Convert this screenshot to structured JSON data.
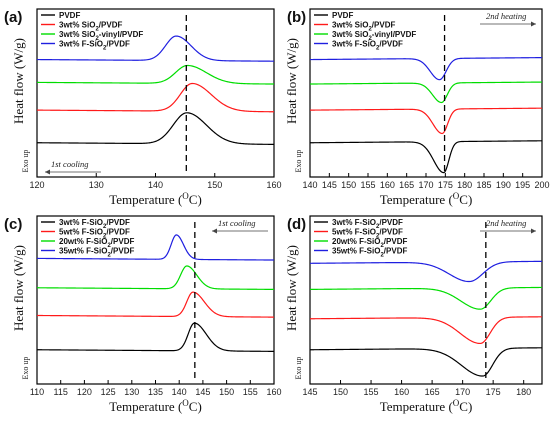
{
  "figure_colors": {
    "black": "#000000",
    "red": "#ff1a1a",
    "green": "#00dd00",
    "blue": "#1f1fe0"
  },
  "chart_data": [
    {
      "panel": "(a)",
      "type": "line",
      "xlabel": "Temperature (",
      "xlabel_unit_sup": "O",
      "xlabel_tail": "C)",
      "ylabel": "Heat flow (W/g)",
      "xlim": [
        120,
        160
      ],
      "xticks": [
        120,
        130,
        140,
        150,
        160
      ],
      "exo_label": "Exo up",
      "annotation": "1st cooling",
      "annotation_arrow": "left",
      "dashed_line_x": 145.2,
      "legend": [
        "PVDF",
        "3wt% SiO2/PVDF",
        "3wt% SiO2-vinyl/PVDF",
        "3wt% F-SiO2/PVDF"
      ],
      "series": [
        {
          "name": "PVDF",
          "color": "#000000",
          "baseline": 0.0,
          "shape": "peak",
          "center": 145.3,
          "height": 0.95,
          "wl": 2.3,
          "wr": 3.3
        },
        {
          "name": "3wt% SiO2/PVDF",
          "color": "#ff1a1a",
          "baseline": 1.0,
          "shape": "peak",
          "center": 146.2,
          "height": 0.85,
          "wl": 2.0,
          "wr": 3.2
        },
        {
          "name": "3wt% SiO2-vinyl/PVDF",
          "color": "#00dd00",
          "baseline": 1.85,
          "shape": "peak",
          "center": 145.4,
          "height": 0.55,
          "wl": 2.0,
          "wr": 3.2
        },
        {
          "name": "3wt% F-SiO2/PVDF",
          "color": "#1f1fe0",
          "baseline": 2.55,
          "shape": "peak",
          "center": 143.5,
          "height": 0.75,
          "wl": 1.8,
          "wr": 2.5
        }
      ]
    },
    {
      "panel": "(b)",
      "type": "line",
      "xlabel": "Temperature (",
      "xlabel_unit_sup": "O",
      "xlabel_tail": "C)",
      "ylabel": "Heat flow (W/g)",
      "xlim": [
        140,
        200
      ],
      "xticks": [
        140,
        145,
        150,
        155,
        160,
        165,
        170,
        175,
        180,
        185,
        190,
        195,
        200
      ],
      "exo_label": "Exo up",
      "annotation": "2nd heating",
      "annotation_arrow": "right",
      "dashed_line_x": 174.8,
      "legend": [
        "PVDF",
        "3wt% SiO2/PVDF",
        "3wt% SiO2-vinyl/PVDF",
        "3wt% F-SiO2/PVDF"
      ],
      "series": [
        {
          "name": "PVDF",
          "color": "#000000",
          "baseline": 0.0,
          "shape": "dip",
          "center": 174.6,
          "height": 0.95,
          "wl": 2.6,
          "wr": 1.3
        },
        {
          "name": "3wt% SiO2/PVDF",
          "color": "#ff1a1a",
          "baseline": 1.0,
          "shape": "dip",
          "center": 174.2,
          "height": 0.75,
          "wl": 2.4,
          "wr": 1.4
        },
        {
          "name": "3wt% SiO2-vinyl/PVDF",
          "color": "#00dd00",
          "baseline": 1.8,
          "shape": "dip",
          "center": 174.0,
          "height": 0.6,
          "wl": 2.3,
          "wr": 1.5
        },
        {
          "name": "3wt% F-SiO2/PVDF",
          "color": "#1f1fe0",
          "baseline": 2.55,
          "shape": "dip",
          "center": 173.5,
          "height": 0.65,
          "wl": 2.4,
          "wr": 1.7
        }
      ]
    },
    {
      "panel": "(c)",
      "type": "line",
      "xlabel": "Temperature (",
      "xlabel_unit_sup": "O",
      "xlabel_tail": "C)",
      "ylabel": "Heat flow (W/g)",
      "xlim": [
        110,
        160
      ],
      "xticks": [
        110,
        115,
        120,
        125,
        130,
        135,
        140,
        145,
        150,
        155,
        160
      ],
      "exo_label": "Exo up",
      "annotation": "1st cooling",
      "annotation_arrow": "left",
      "dashed_line_x": 143.3,
      "legend": [
        "3wt% F-SiO2/PVDF",
        "5wt% F-SiO2/PVDF",
        "20wt% F-SiO2/PVDF",
        "35wt% F-SiO2/PVDF"
      ],
      "series": [
        {
          "name": "3wt% F-SiO2/PVDF",
          "color": "#000000",
          "baseline": 0.0,
          "shape": "peak",
          "center": 143.2,
          "height": 0.85,
          "wl": 1.3,
          "wr": 2.5
        },
        {
          "name": "5wt% F-SiO2/PVDF",
          "color": "#ff1a1a",
          "baseline": 1.05,
          "shape": "peak",
          "center": 142.9,
          "height": 0.75,
          "wl": 1.3,
          "wr": 2.4
        },
        {
          "name": "20wt% F-SiO2/PVDF",
          "color": "#00dd00",
          "baseline": 1.9,
          "shape": "peak",
          "center": 141.6,
          "height": 0.7,
          "wl": 1.3,
          "wr": 2.1
        },
        {
          "name": "35wt% F-SiO2/PVDF",
          "color": "#1f1fe0",
          "baseline": 2.8,
          "shape": "peak",
          "center": 139.4,
          "height": 0.75,
          "wl": 1.1,
          "wr": 1.5
        }
      ]
    },
    {
      "panel": "(d)",
      "type": "line",
      "xlabel": "Temperature (",
      "xlabel_unit_sup": "O",
      "xlabel_tail": "C)",
      "ylabel": "Heat flow (W/g)",
      "xlim": [
        145,
        183
      ],
      "xticks": [
        145,
        150,
        155,
        160,
        165,
        170,
        175,
        180
      ],
      "exo_label": "Exo up",
      "annotation": "2nd heating",
      "annotation_arrow": "right",
      "dashed_line_x": 173.8,
      "legend": [
        "3wt% F-SiO2/PVDF",
        "5wt% F-SiO2/PVDF",
        "20wt% F-SiO2/PVDF",
        "35wt% F-SiO2/PVDF"
      ],
      "series": [
        {
          "name": "3wt% F-SiO2/PVDF",
          "color": "#000000",
          "baseline": 0.0,
          "shape": "dip",
          "center": 173.3,
          "height": 0.85,
          "wl": 3.5,
          "wr": 1.6
        },
        {
          "name": "5wt% F-SiO2/PVDF",
          "color": "#ff1a1a",
          "baseline": 0.95,
          "shape": "dip",
          "center": 172.9,
          "height": 0.8,
          "wl": 3.3,
          "wr": 1.6
        },
        {
          "name": "20wt% F-SiO2/PVDF",
          "color": "#00dd00",
          "baseline": 1.85,
          "shape": "dip",
          "center": 172.9,
          "height": 0.65,
          "wl": 3.2,
          "wr": 1.7
        },
        {
          "name": "35wt% F-SiO2/PVDF",
          "color": "#1f1fe0",
          "baseline": 2.65,
          "shape": "dip",
          "center": 171.1,
          "height": 0.6,
          "wl": 3.3,
          "wr": 2.2
        }
      ]
    }
  ]
}
